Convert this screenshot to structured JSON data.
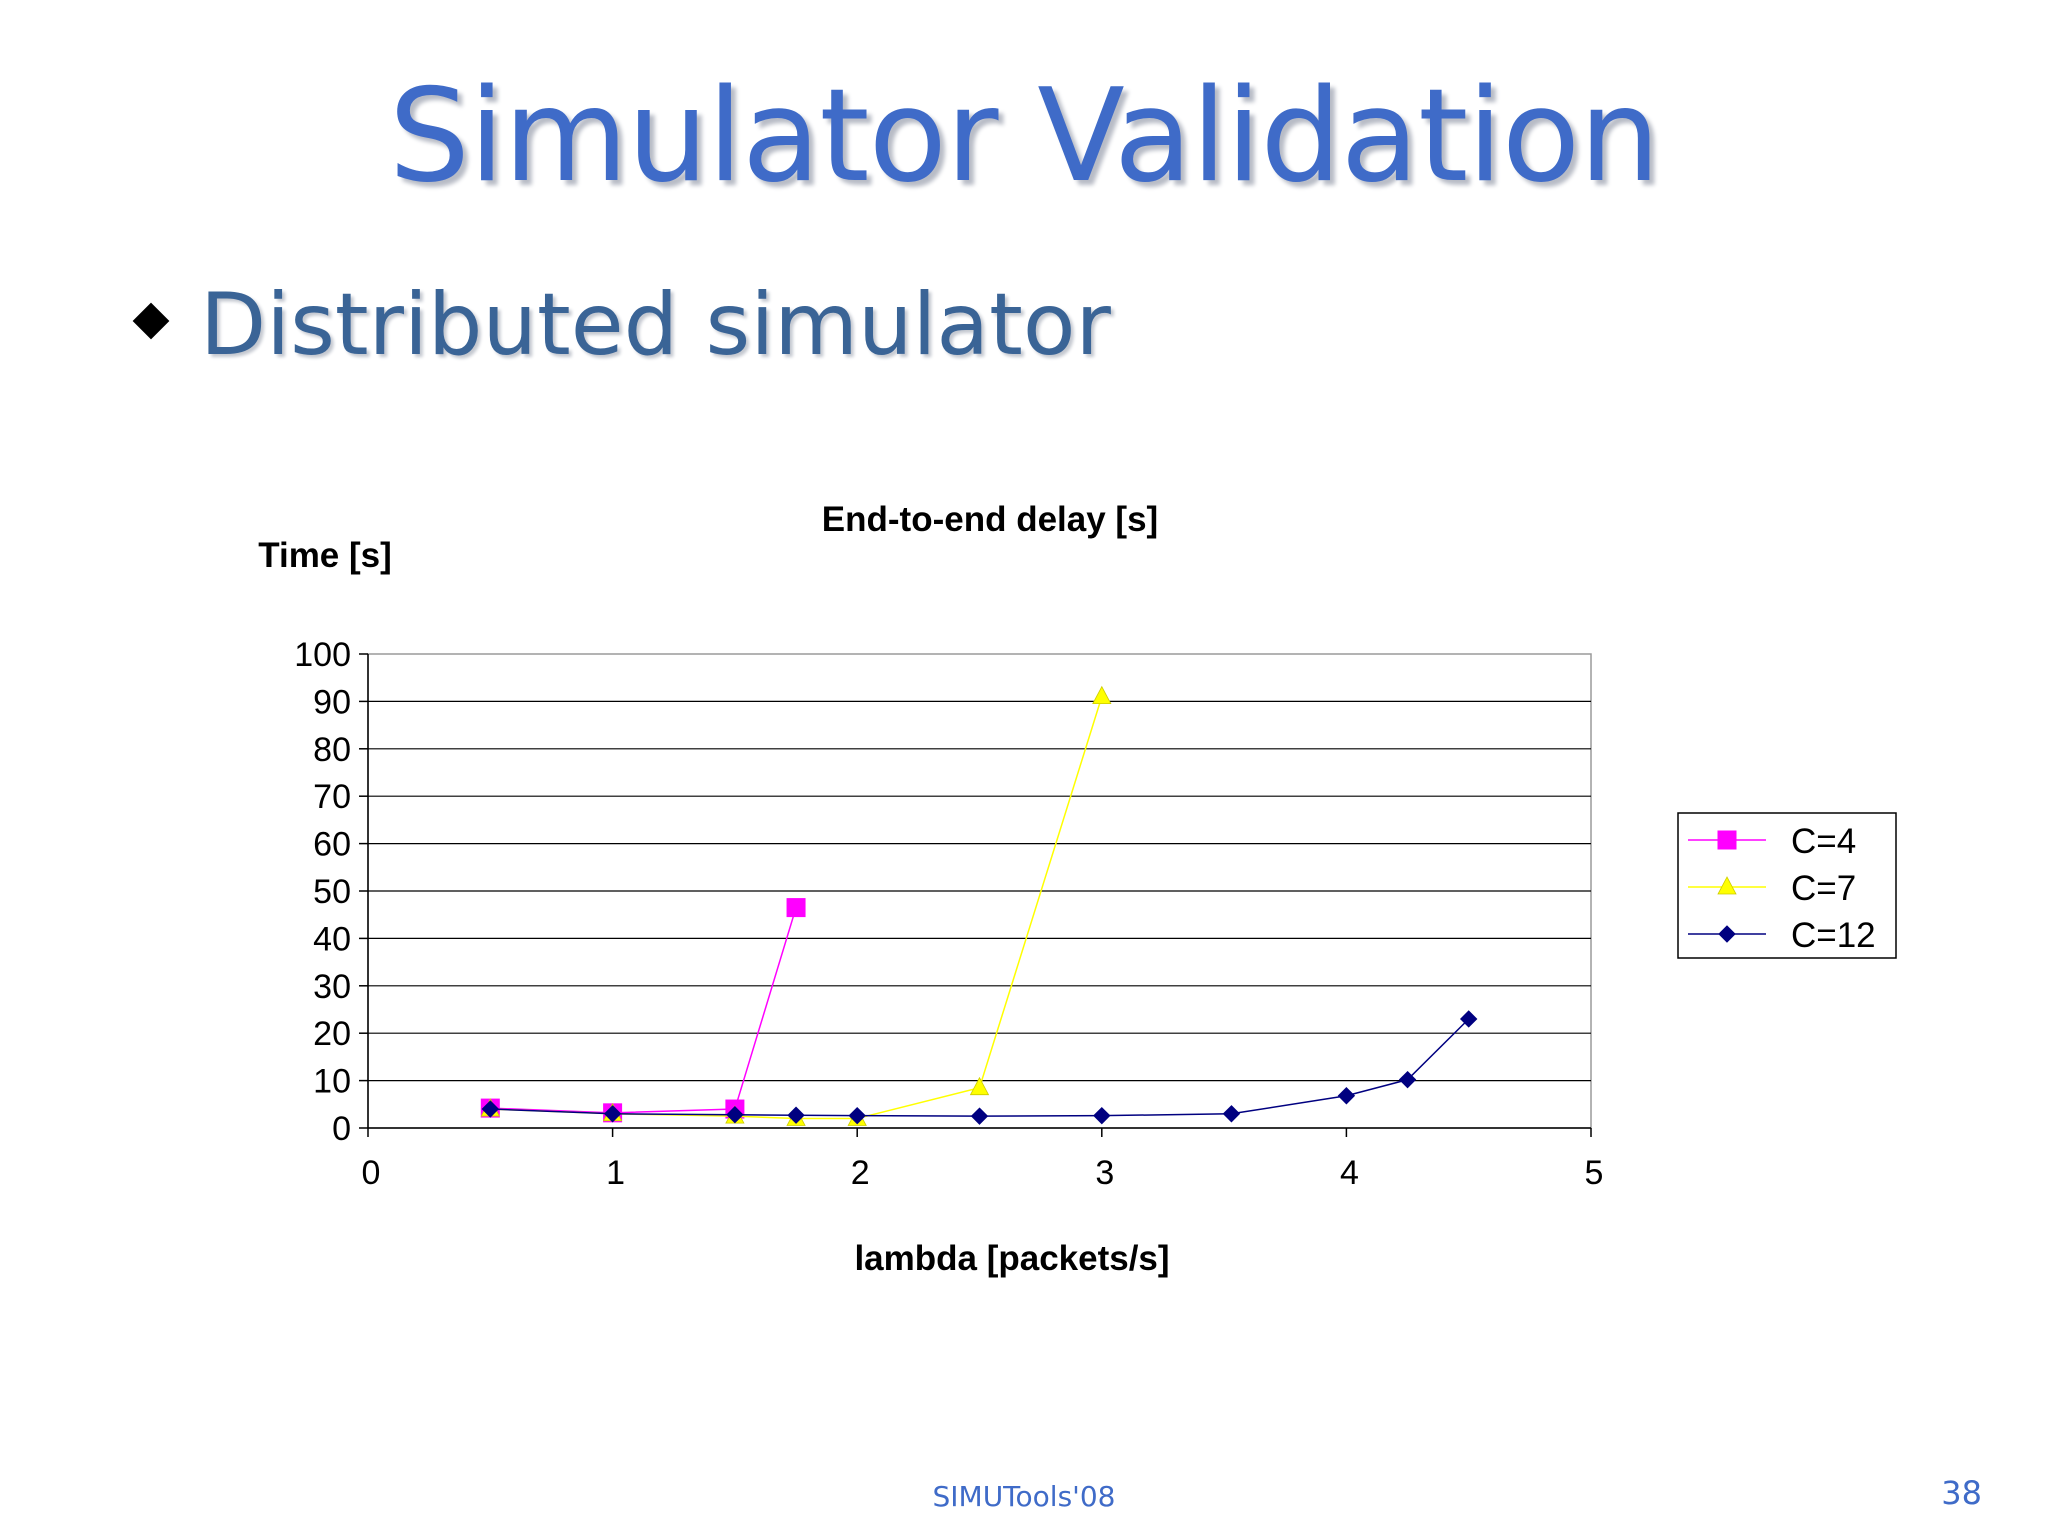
{
  "slide": {
    "title": "Simulator Validation",
    "bullet": "Distributed simulator",
    "footer": "SIMUTools'08",
    "page_number": "38"
  },
  "chart_data": {
    "type": "line",
    "title": "End-to-end delay [s]",
    "xlabel": "lambda [packets/s]",
    "ylabel": "Time [s]",
    "xlim": [
      0,
      5
    ],
    "ylim": [
      0,
      100
    ],
    "x_ticks": [
      "0",
      "1",
      "2",
      "3",
      "4",
      "5"
    ],
    "y_ticks": [
      "0",
      "10",
      "20",
      "30",
      "40",
      "50",
      "60",
      "70",
      "80",
      "90",
      "100"
    ],
    "grid": "horizontal",
    "legend_position": "right",
    "series": [
      {
        "name": "C=4",
        "color": "#ff00ff",
        "marker": "square",
        "x": [
          0.5,
          1.0,
          1.5,
          1.75
        ],
        "y": [
          4.2,
          3.2,
          4.0,
          46.5
        ]
      },
      {
        "name": "C=7",
        "color": "#ffff00",
        "marker": "triangle",
        "x": [
          0.5,
          1.0,
          1.5,
          1.75,
          2.0,
          2.5,
          3.0
        ],
        "y": [
          4.0,
          3.0,
          2.5,
          2.0,
          2.0,
          8.5,
          91.0
        ]
      },
      {
        "name": "C=12",
        "color": "#000080",
        "marker": "diamond",
        "x": [
          0.5,
          1.0,
          1.5,
          1.75,
          2.0,
          2.5,
          3.0,
          3.53,
          4.0,
          4.25,
          4.5
        ],
        "y": [
          4.0,
          3.0,
          2.8,
          2.7,
          2.6,
          2.5,
          2.6,
          3.0,
          6.8,
          10.2,
          23.0
        ]
      }
    ]
  }
}
